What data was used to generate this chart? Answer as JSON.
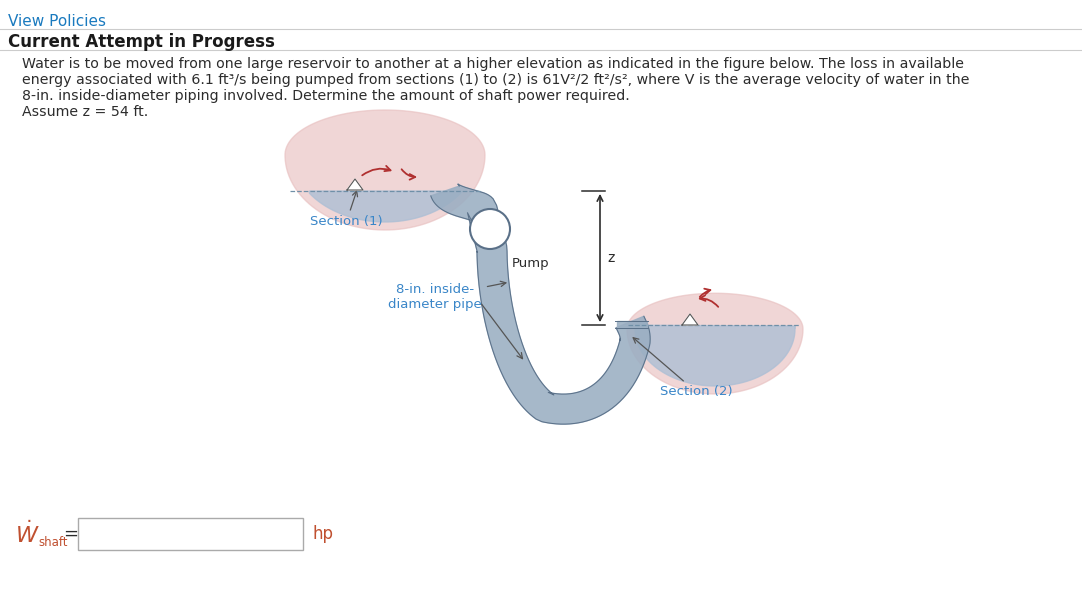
{
  "title_link": "View Policies",
  "title_link_color": "#1a7abf",
  "subtitle": "Current Attempt in Progress",
  "problem_text_line1": "Water is to be moved from one large reservoir to another at a higher elevation as indicated in the figure below. The loss in available",
  "problem_text_line2": "energy associated with 6.1 ft³/s being pumped from sections (1) to (2) is 61V²/2 ft²/s², where V is the average velocity of water in the",
  "problem_text_line3": "8-in. inside-diameter piping involved. Determine the amount of shaft power required.",
  "problem_text_line4": "Assume z = 54 ft.",
  "bg_color": "#ffffff",
  "text_color": "#2c2c2c",
  "water_color": "#adbfd4",
  "pink_color": "#e8c0c0",
  "pipe_color": "#9aaec2",
  "pipe_edge_color": "#5a7088",
  "label_color": "#3a86c8",
  "section1_label": "Section (1)",
  "section2_label": "Section (2)",
  "pipe_label": "8-in. inside-\ndiameter pipe",
  "pump_label": "Pump",
  "z_label": "z",
  "arrow_color": "#b03030"
}
